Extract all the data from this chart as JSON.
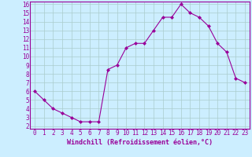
{
  "x": [
    0,
    1,
    2,
    3,
    4,
    5,
    6,
    7,
    8,
    9,
    10,
    11,
    12,
    13,
    14,
    15,
    16,
    17,
    18,
    19,
    20,
    21,
    22,
    23
  ],
  "y": [
    6,
    5,
    4,
    3.5,
    3,
    2.5,
    2.5,
    2.5,
    8.5,
    9,
    11,
    11.5,
    11.5,
    13,
    14.5,
    14.5,
    16,
    15,
    14.5,
    13.5,
    11.5,
    10.5,
    7.5,
    7
  ],
  "line_color": "#990099",
  "marker": "D",
  "marker_size": 2.0,
  "background_color": "#cceeff",
  "grid_color": "#aacccc",
  "xlabel": "Windchill (Refroidissement éolien,°C)",
  "xlabel_fontsize": 6.0,
  "tick_fontsize": 5.5,
  "ylim": [
    2,
    16
  ],
  "xlim": [
    -0.5,
    23.5
  ],
  "yticks": [
    2,
    3,
    4,
    5,
    6,
    7,
    8,
    9,
    10,
    11,
    12,
    13,
    14,
    15,
    16
  ],
  "xticks": [
    0,
    1,
    2,
    3,
    4,
    5,
    6,
    7,
    8,
    9,
    10,
    11,
    12,
    13,
    14,
    15,
    16,
    17,
    18,
    19,
    20,
    21,
    22,
    23
  ]
}
